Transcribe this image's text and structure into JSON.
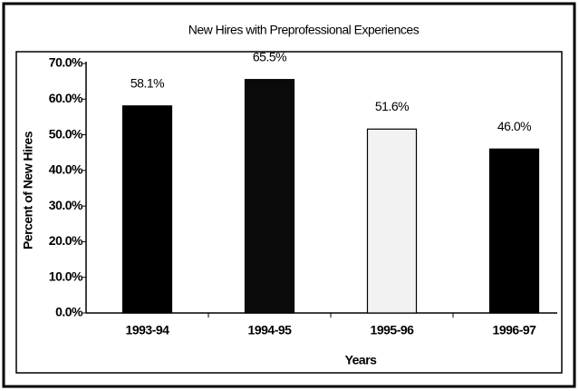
{
  "chart_data": {
    "type": "bar",
    "title": "New Hires with Preprofessional Experiences",
    "categories": [
      "1993-94",
      "1994-95",
      "1995-96",
      "1996-97"
    ],
    "values": [
      58.1,
      65.5,
      51.6,
      46.0
    ],
    "value_labels": [
      "58.1%",
      "65.5%",
      "51.6%",
      "46.0%"
    ],
    "colors": [
      "#000000",
      "#0a0a0a",
      "#f2f2f2",
      "#000000"
    ],
    "xlabel": "Years",
    "ylabel": "Percent of New Hires",
    "ylim": [
      0,
      70
    ],
    "yticks": [
      {
        "value": 0,
        "label": "0.0%"
      },
      {
        "value": 10,
        "label": "10.0%"
      },
      {
        "value": 20,
        "label": "20.0%"
      },
      {
        "value": 30,
        "label": "30.0%"
      },
      {
        "value": 40,
        "label": "40.0%"
      },
      {
        "value": 50,
        "label": "50.0%"
      },
      {
        "value": 60,
        "label": "60.0%"
      },
      {
        "value": 70,
        "label": "70.0%"
      }
    ]
  }
}
